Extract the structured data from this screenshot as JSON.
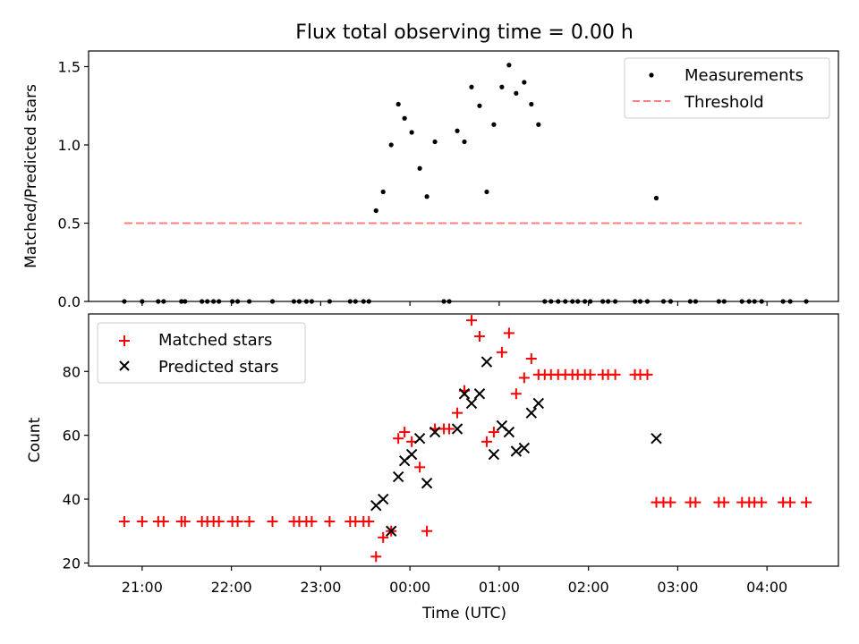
{
  "title": "Flux total observing time = 0.00 h",
  "chart_data": [
    {
      "type": "scatter",
      "ylabel": "Matched/Predicted stars",
      "xlabel": "",
      "x_unit": "hours relative to 00:00 UTC",
      "xlim": [
        -3.6,
        4.8
      ],
      "ylim": [
        0,
        1.6
      ],
      "yticks": [
        0.0,
        0.5,
        1.0,
        1.5
      ],
      "ytick_labels": [
        "0.0",
        "0.5",
        "1.0",
        "1.5"
      ],
      "legend_position": "top-right",
      "grid": false,
      "series": [
        {
          "name": "Measurements",
          "marker": "dot",
          "color": "#000000",
          "points": [
            [
              -3.2,
              0
            ],
            [
              -3.0,
              0
            ],
            [
              -2.82,
              0
            ],
            [
              -2.76,
              0
            ],
            [
              -2.56,
              0
            ],
            [
              -2.52,
              0
            ],
            [
              -2.33,
              0
            ],
            [
              -2.27,
              0
            ],
            [
              -2.2,
              0
            ],
            [
              -2.14,
              0
            ],
            [
              -1.99,
              0
            ],
            [
              -1.93,
              0
            ],
            [
              -1.8,
              0
            ],
            [
              -1.54,
              0
            ],
            [
              -1.3,
              0
            ],
            [
              -1.24,
              0
            ],
            [
              -1.16,
              0
            ],
            [
              -1.1,
              0
            ],
            [
              -0.9,
              0
            ],
            [
              -0.67,
              0
            ],
            [
              -0.61,
              0
            ],
            [
              -0.52,
              0
            ],
            [
              -0.46,
              0
            ],
            [
              -0.38,
              0.58
            ],
            [
              -0.3,
              0.7
            ],
            [
              -0.21,
              1.0
            ],
            [
              -0.13,
              1.26
            ],
            [
              -0.06,
              1.17
            ],
            [
              0.02,
              1.08
            ],
            [
              0.11,
              0.85
            ],
            [
              0.19,
              0.67
            ],
            [
              0.28,
              1.02
            ],
            [
              0.38,
              0
            ],
            [
              0.44,
              0
            ],
            [
              0.53,
              1.09
            ],
            [
              0.61,
              1.02
            ],
            [
              0.69,
              1.37
            ],
            [
              0.78,
              1.25
            ],
            [
              0.86,
              0.7
            ],
            [
              0.94,
              1.13
            ],
            [
              1.03,
              1.37
            ],
            [
              1.11,
              1.51
            ],
            [
              1.19,
              1.33
            ],
            [
              1.28,
              1.4
            ],
            [
              1.36,
              1.26
            ],
            [
              1.44,
              1.13
            ],
            [
              1.51,
              0
            ],
            [
              1.58,
              0
            ],
            [
              1.66,
              0
            ],
            [
              1.74,
              0
            ],
            [
              1.82,
              0
            ],
            [
              1.88,
              0
            ],
            [
              1.96,
              0
            ],
            [
              2.02,
              0
            ],
            [
              2.16,
              0
            ],
            [
              2.22,
              0
            ],
            [
              2.3,
              0
            ],
            [
              2.52,
              0
            ],
            [
              2.58,
              0
            ],
            [
              2.66,
              0
            ],
            [
              2.76,
              0.66
            ],
            [
              2.84,
              0
            ],
            [
              2.92,
              0
            ],
            [
              3.14,
              0
            ],
            [
              3.2,
              0
            ],
            [
              3.46,
              0
            ],
            [
              3.52,
              0
            ],
            [
              3.72,
              0
            ],
            [
              3.8,
              0
            ],
            [
              3.86,
              0
            ],
            [
              3.94,
              0
            ],
            [
              4.18,
              0
            ],
            [
              4.26,
              0
            ],
            [
              4.44,
              0
            ]
          ]
        },
        {
          "name": "Threshold",
          "marker": "dashed-line",
          "color": "#ff7f7f",
          "points": [
            [
              -3.2,
              0.5
            ],
            [
              4.39,
              0.5
            ]
          ]
        }
      ]
    },
    {
      "type": "scatter",
      "ylabel": "Count",
      "xlabel": "Time (UTC)",
      "x_unit": "hours relative to 00:00 UTC",
      "xlim": [
        -3.6,
        4.8
      ],
      "ylim": [
        19,
        98
      ],
      "yticks": [
        20,
        40,
        60,
        80
      ],
      "ytick_labels": [
        "20",
        "40",
        "60",
        "80"
      ],
      "xticks": [
        -3,
        -2,
        -1,
        0,
        1,
        2,
        3,
        4
      ],
      "xtick_labels": [
        "21:00",
        "22:00",
        "23:00",
        "00:00",
        "01:00",
        "02:00",
        "03:00",
        "04:00"
      ],
      "legend_position": "top-left",
      "grid": false,
      "series": [
        {
          "name": "Matched stars",
          "marker": "plus",
          "color": "#ff0000",
          "points": [
            [
              -3.2,
              33
            ],
            [
              -3.0,
              33
            ],
            [
              -2.82,
              33
            ],
            [
              -2.76,
              33
            ],
            [
              -2.56,
              33
            ],
            [
              -2.52,
              33
            ],
            [
              -2.33,
              33
            ],
            [
              -2.27,
              33
            ],
            [
              -2.2,
              33
            ],
            [
              -2.14,
              33
            ],
            [
              -1.99,
              33
            ],
            [
              -1.93,
              33
            ],
            [
              -1.8,
              33
            ],
            [
              -1.54,
              33
            ],
            [
              -1.3,
              33
            ],
            [
              -1.24,
              33
            ],
            [
              -1.16,
              33
            ],
            [
              -1.1,
              33
            ],
            [
              -0.9,
              33
            ],
            [
              -0.67,
              33
            ],
            [
              -0.61,
              33
            ],
            [
              -0.52,
              33
            ],
            [
              -0.46,
              33
            ],
            [
              -0.38,
              22
            ],
            [
              -0.3,
              28
            ],
            [
              -0.21,
              30
            ],
            [
              -0.13,
              59
            ],
            [
              -0.06,
              61
            ],
            [
              0.02,
              58
            ],
            [
              0.11,
              50
            ],
            [
              0.19,
              30
            ],
            [
              0.28,
              62
            ],
            [
              0.38,
              62
            ],
            [
              0.44,
              62
            ],
            [
              0.53,
              67
            ],
            [
              0.61,
              74
            ],
            [
              0.69,
              96
            ],
            [
              0.78,
              91
            ],
            [
              0.86,
              58
            ],
            [
              0.94,
              61
            ],
            [
              1.03,
              86
            ],
            [
              1.11,
              92
            ],
            [
              1.19,
              73
            ],
            [
              1.28,
              78
            ],
            [
              1.36,
              84
            ],
            [
              1.44,
              79
            ],
            [
              1.51,
              79
            ],
            [
              1.58,
              79
            ],
            [
              1.66,
              79
            ],
            [
              1.74,
              79
            ],
            [
              1.82,
              79
            ],
            [
              1.88,
              79
            ],
            [
              1.96,
              79
            ],
            [
              2.02,
              79
            ],
            [
              2.16,
              79
            ],
            [
              2.22,
              79
            ],
            [
              2.3,
              79
            ],
            [
              2.52,
              79
            ],
            [
              2.58,
              79
            ],
            [
              2.66,
              79
            ],
            [
              2.76,
              39
            ],
            [
              2.84,
              39
            ],
            [
              2.92,
              39
            ],
            [
              3.14,
              39
            ],
            [
              3.2,
              39
            ],
            [
              3.46,
              39
            ],
            [
              3.52,
              39
            ],
            [
              3.72,
              39
            ],
            [
              3.8,
              39
            ],
            [
              3.86,
              39
            ],
            [
              3.94,
              39
            ],
            [
              4.18,
              39
            ],
            [
              4.26,
              39
            ],
            [
              4.44,
              39
            ]
          ]
        },
        {
          "name": "Predicted stars",
          "marker": "x",
          "color": "#000000",
          "points": [
            [
              -0.38,
              38
            ],
            [
              -0.3,
              40
            ],
            [
              -0.21,
              30
            ],
            [
              -0.13,
              47
            ],
            [
              -0.06,
              52
            ],
            [
              0.02,
              54
            ],
            [
              0.11,
              59
            ],
            [
              0.19,
              45
            ],
            [
              0.28,
              61
            ],
            [
              0.53,
              62
            ],
            [
              0.61,
              73
            ],
            [
              0.69,
              70
            ],
            [
              0.78,
              73
            ],
            [
              0.86,
              83
            ],
            [
              0.94,
              54
            ],
            [
              1.03,
              63
            ],
            [
              1.11,
              61
            ],
            [
              1.19,
              55
            ],
            [
              1.28,
              56
            ],
            [
              1.36,
              67
            ],
            [
              1.44,
              70
            ],
            [
              2.76,
              59
            ]
          ]
        }
      ]
    }
  ]
}
